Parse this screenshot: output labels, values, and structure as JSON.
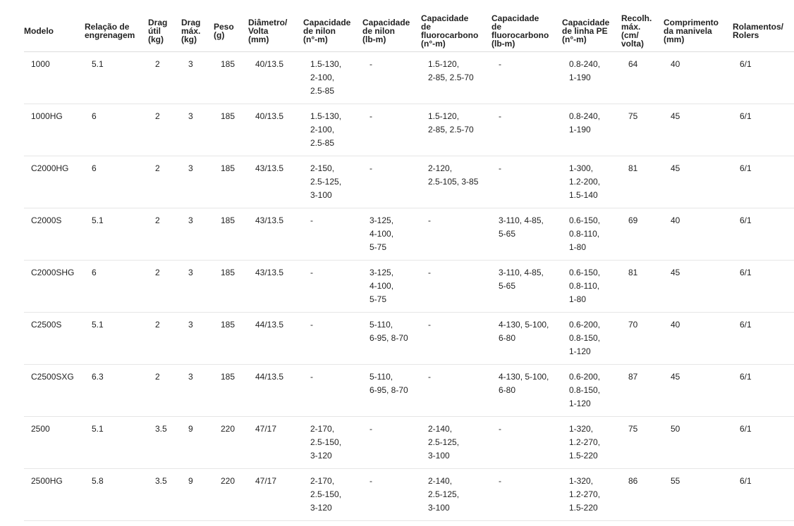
{
  "table": {
    "headers": [
      "Modelo",
      "Relação de\nengrenagem",
      "Drag\nútil\n(kg)",
      "Drag\nmáx.\n(kg)",
      "Peso\n(g)",
      "Diâmetro/\nVolta\n(mm)",
      "Capacidade\nde nilon\n(n°-m)",
      "Capacidade\nde nilon\n(lb-m)",
      "Capacidade\nde\nfluorocarbono\n(n°-m)",
      "Capacidade\nde\nfluorocarbono\n(lb-m)",
      "Capacidade\nde linha PE\n(n°-m)",
      "Recolh.\nmáx.\n(cm/\nvolta)",
      "Comprimento\nda manivela\n(mm)",
      "Rolamentos/\nRolers"
    ],
    "rows": [
      [
        "1000",
        "5.1",
        "2",
        "3",
        "185",
        "40/13.5",
        "1.5-130,\n2-100,\n2.5-85",
        "-",
        "1.5-120,\n2-85, 2.5-70",
        "-",
        "0.8-240,\n1-190",
        "64",
        "40",
        "6/1"
      ],
      [
        "1000HG",
        "6",
        "2",
        "3",
        "185",
        "40/13.5",
        "1.5-130,\n2-100,\n2.5-85",
        "-",
        "1.5-120,\n2-85, 2.5-70",
        "-",
        "0.8-240,\n1-190",
        "75",
        "45",
        "6/1"
      ],
      [
        "C2000HG",
        "6",
        "2",
        "3",
        "185",
        "43/13.5",
        "2-150,\n2.5-125,\n3-100",
        "-",
        "2-120,\n2.5-105, 3-85",
        "-",
        "1-300,\n1.2-200,\n1.5-140",
        "81",
        "45",
        "6/1"
      ],
      [
        "C2000S",
        "5.1",
        "2",
        "3",
        "185",
        "43/13.5",
        "-",
        "3-125,\n4-100,\n5-75",
        "-",
        "3-110, 4-85,\n5-65",
        "0.6-150,\n0.8-110,\n1-80",
        "69",
        "40",
        "6/1"
      ],
      [
        "C2000SHG",
        "6",
        "2",
        "3",
        "185",
        "43/13.5",
        "-",
        "3-125,\n4-100,\n5-75",
        "-",
        "3-110, 4-85,\n5-65",
        "0.6-150,\n0.8-110,\n1-80",
        "81",
        "45",
        "6/1"
      ],
      [
        "C2500S",
        "5.1",
        "2",
        "3",
        "185",
        "44/13.5",
        "-",
        "5-110,\n6-95, 8-70",
        "-",
        "4-130, 5-100,\n6-80",
        "0.6-200,\n0.8-150,\n1-120",
        "70",
        "40",
        "6/1"
      ],
      [
        "C2500SXG",
        "6.3",
        "2",
        "3",
        "185",
        "44/13.5",
        "-",
        "5-110,\n6-95, 8-70",
        "-",
        "4-130, 5-100,\n6-80",
        "0.6-200,\n0.8-150,\n1-120",
        "87",
        "45",
        "6/1"
      ],
      [
        "2500",
        "5.1",
        "3.5",
        "9",
        "220",
        "47/17",
        "2-170,\n2.5-150,\n3-120",
        "-",
        "2-140,\n2.5-125,\n3-100",
        "-",
        "1-320,\n1.2-270,\n1.5-220",
        "75",
        "50",
        "6/1"
      ],
      [
        "2500HG",
        "5.8",
        "3.5",
        "9",
        "220",
        "47/17",
        "2-170,\n2.5-150,\n3-120",
        "-",
        "2-140,\n2.5-125,\n3-100",
        "-",
        "1-320,\n1.2-270,\n1.5-220",
        "86",
        "55",
        "6/1"
      ]
    ]
  }
}
